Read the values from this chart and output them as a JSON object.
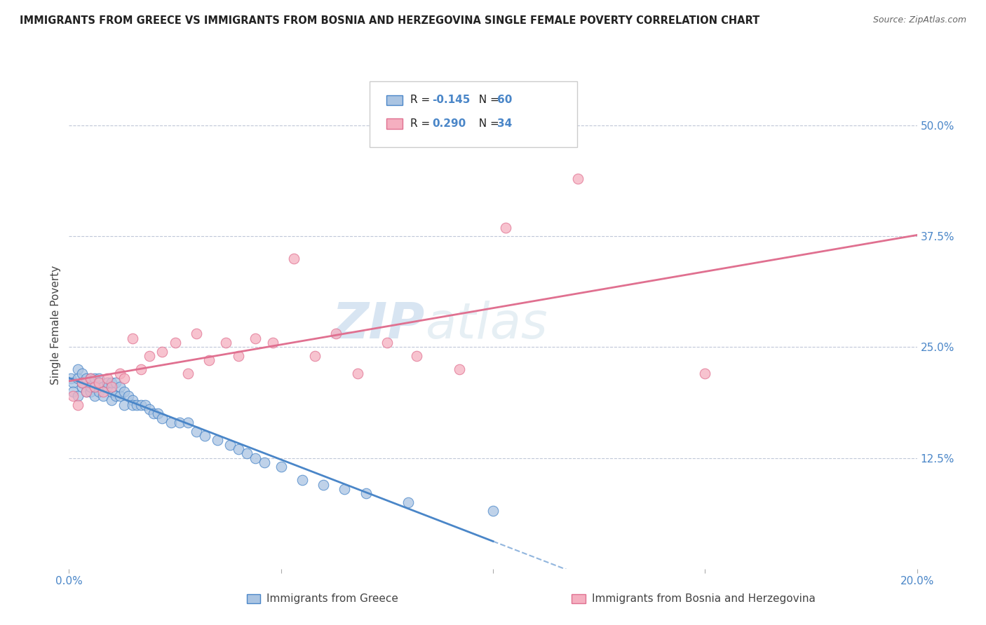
{
  "title": "IMMIGRANTS FROM GREECE VS IMMIGRANTS FROM BOSNIA AND HERZEGOVINA SINGLE FEMALE POVERTY CORRELATION CHART",
  "source": "Source: ZipAtlas.com",
  "xlabel_greece": "Immigrants from Greece",
  "xlabel_bosnia": "Immigrants from Bosnia and Herzegovina",
  "ylabel": "Single Female Poverty",
  "xlim": [
    0.0,
    0.2
  ],
  "ylim": [
    0.0,
    0.55
  ],
  "ytick_labels_right": [
    "50.0%",
    "37.5%",
    "25.0%",
    "12.5%",
    ""
  ],
  "ytick_positions_right": [
    0.5,
    0.375,
    0.25,
    0.125,
    0.0
  ],
  "R_greece": -0.145,
  "N_greece": 60,
  "R_bosnia": 0.29,
  "N_bosnia": 34,
  "color_greece": "#aac4e2",
  "color_bosnia": "#f5afc0",
  "line_color_greece": "#4a86c8",
  "line_color_bosnia": "#e07090",
  "watermark_zip": "ZIP",
  "watermark_atlas": "atlas",
  "greece_x": [
    0.0005,
    0.001,
    0.001,
    0.002,
    0.002,
    0.002,
    0.003,
    0.003,
    0.003,
    0.004,
    0.004,
    0.005,
    0.005,
    0.005,
    0.006,
    0.006,
    0.007,
    0.007,
    0.007,
    0.008,
    0.008,
    0.009,
    0.009,
    0.01,
    0.01,
    0.01,
    0.011,
    0.011,
    0.012,
    0.012,
    0.013,
    0.013,
    0.014,
    0.015,
    0.015,
    0.016,
    0.017,
    0.018,
    0.019,
    0.02,
    0.021,
    0.022,
    0.024,
    0.026,
    0.028,
    0.03,
    0.032,
    0.035,
    0.038,
    0.04,
    0.042,
    0.044,
    0.046,
    0.05,
    0.055,
    0.06,
    0.065,
    0.07,
    0.08,
    0.1
  ],
  "greece_y": [
    0.215,
    0.21,
    0.2,
    0.225,
    0.195,
    0.215,
    0.205,
    0.22,
    0.21,
    0.2,
    0.215,
    0.2,
    0.215,
    0.205,
    0.215,
    0.195,
    0.205,
    0.215,
    0.2,
    0.205,
    0.195,
    0.205,
    0.21,
    0.19,
    0.2,
    0.21,
    0.195,
    0.21,
    0.195,
    0.205,
    0.185,
    0.2,
    0.195,
    0.19,
    0.185,
    0.185,
    0.185,
    0.185,
    0.18,
    0.175,
    0.175,
    0.17,
    0.165,
    0.165,
    0.165,
    0.155,
    0.15,
    0.145,
    0.14,
    0.135,
    0.13,
    0.125,
    0.12,
    0.115,
    0.1,
    0.095,
    0.09,
    0.085,
    0.075,
    0.065
  ],
  "bosnia_x": [
    0.001,
    0.002,
    0.003,
    0.004,
    0.005,
    0.006,
    0.007,
    0.008,
    0.009,
    0.01,
    0.012,
    0.013,
    0.015,
    0.017,
    0.019,
    0.022,
    0.025,
    0.028,
    0.03,
    0.033,
    0.037,
    0.04,
    0.044,
    0.048,
    0.053,
    0.058,
    0.063,
    0.068,
    0.075,
    0.082,
    0.092,
    0.103,
    0.12,
    0.15
  ],
  "bosnia_y": [
    0.195,
    0.185,
    0.21,
    0.2,
    0.215,
    0.205,
    0.21,
    0.2,
    0.215,
    0.205,
    0.22,
    0.215,
    0.26,
    0.225,
    0.24,
    0.245,
    0.255,
    0.22,
    0.265,
    0.235,
    0.255,
    0.24,
    0.26,
    0.255,
    0.35,
    0.24,
    0.265,
    0.22,
    0.255,
    0.24,
    0.225,
    0.385,
    0.44,
    0.22
  ]
}
